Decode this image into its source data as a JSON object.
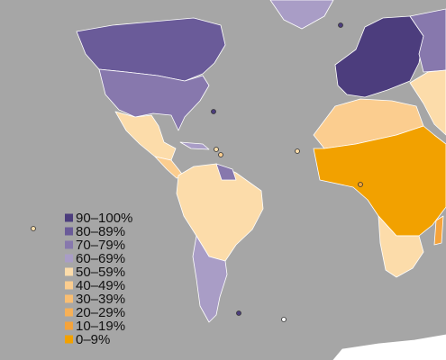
{
  "legend": {
    "items": [
      {
        "label": "90–100%",
        "color": "#4c3d7d"
      },
      {
        "label": "80–89%",
        "color": "#6a5b99"
      },
      {
        "label": "70–79%",
        "color": "#8778ad"
      },
      {
        "label": "60–69%",
        "color": "#a99dc6"
      },
      {
        "label": "50–59%",
        "color": "#fcdcaa"
      },
      {
        "label": "40–49%",
        "color": "#fbcd8f"
      },
      {
        "label": "30–39%",
        "color": "#f9be72"
      },
      {
        "label": "20–29%",
        "color": "#f7b056"
      },
      {
        "label": "10–19%",
        "color": "#f5a33a"
      },
      {
        "label": "0–9%",
        "color": "#f2a100"
      }
    ]
  }
}
